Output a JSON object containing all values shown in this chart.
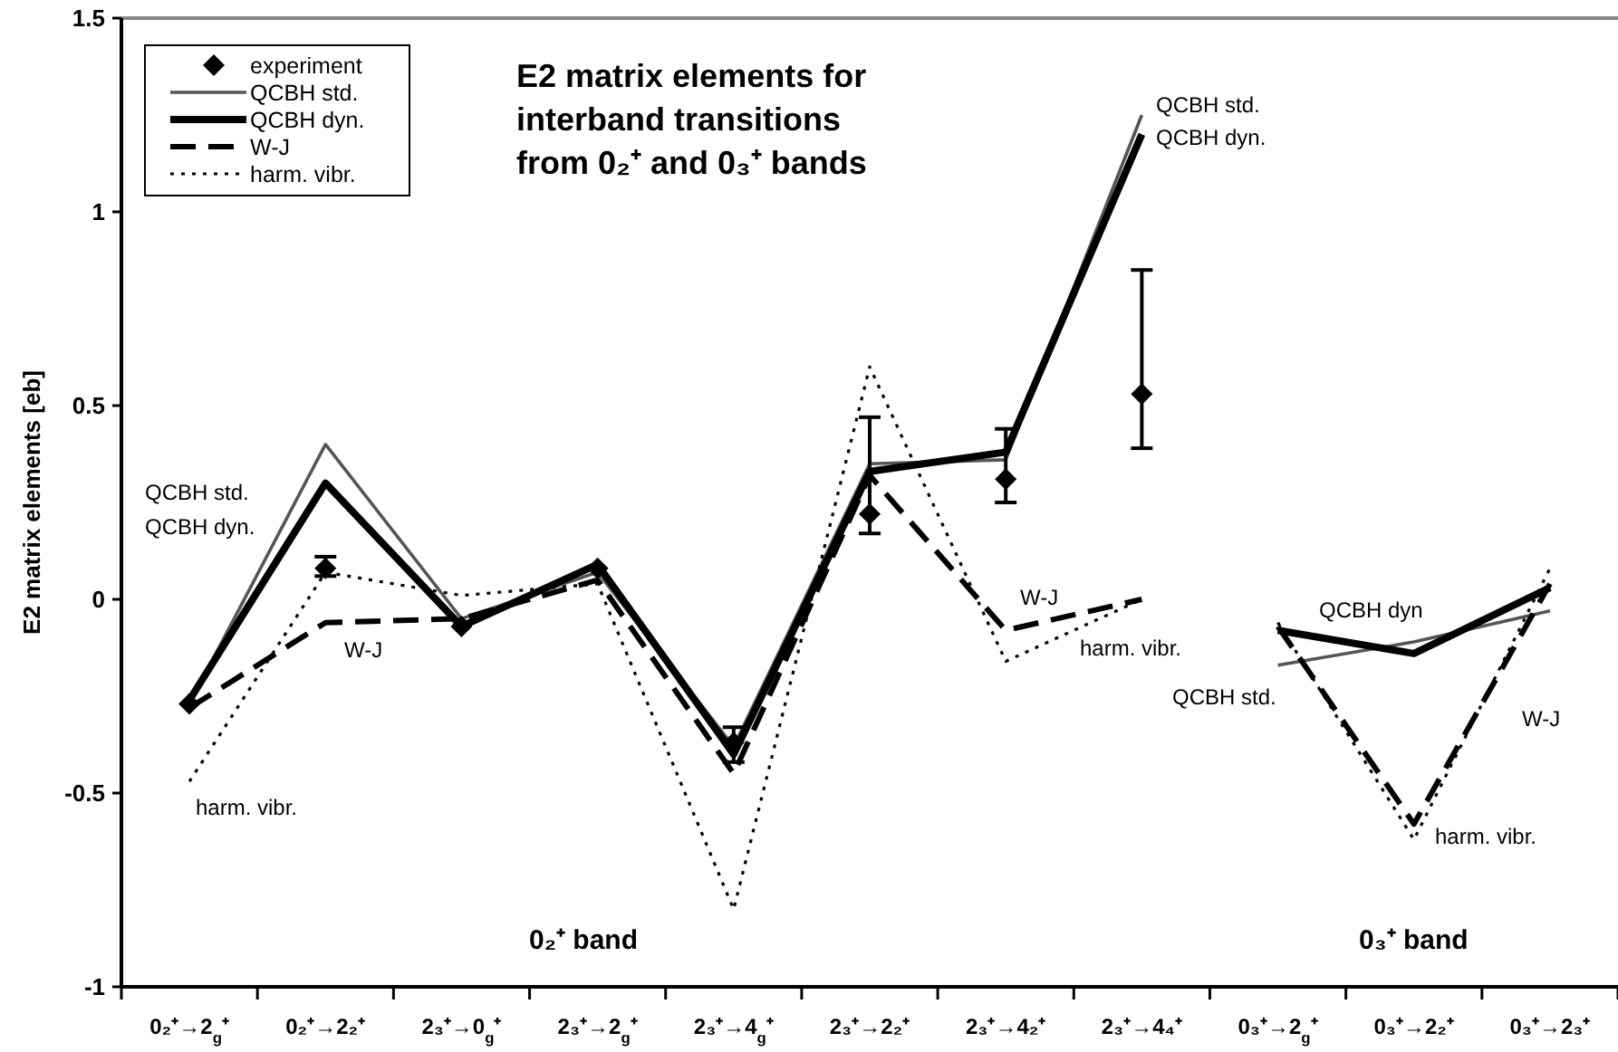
{
  "chart_data": {
    "type": "line",
    "title": "E2 matrix elements for\ninterband transitions\nfrom 0₂⁺ and 0₃⁺ bands",
    "ylabel": "E2 matrix elements [eb]",
    "categories": [
      "0₂⁺→2$_{g}$⁺",
      "0₂⁺→2₂⁺",
      "2₃⁺→0$_{g}$⁺",
      "2₃⁺→2$_{g}$⁺",
      "2₃⁺→4$_{g}$⁺",
      "2₃⁺→2₂⁺",
      "2₃⁺→4₂⁺",
      "2₃⁺→4₄⁺",
      "0₃⁺→2$_{g}$⁺",
      "0₃⁺→2₂⁺",
      "0₃⁺→2₃⁺"
    ],
    "ylim": [
      -1,
      1.5
    ],
    "yticks": [
      -1,
      -0.5,
      0,
      0.5,
      1,
      1.5
    ],
    "grid": false,
    "legend": "top left",
    "series": [
      {
        "name": "experiment",
        "type": "scatter",
        "marker": "diamond",
        "color": "#000000",
        "values": [
          -0.27,
          0.08,
          -0.07,
          0.08,
          -0.37,
          0.22,
          0.31,
          0.53,
          null,
          null,
          null
        ],
        "errors": [
          null,
          [
            0.06,
            0.11
          ],
          null,
          null,
          [
            -0.42,
            -0.33
          ],
          [
            0.17,
            0.47
          ],
          [
            0.25,
            0.44
          ],
          [
            0.39,
            0.85
          ],
          null,
          null,
          null
        ]
      },
      {
        "name": "QCBH std.",
        "color": "#555555",
        "line_style": "solid",
        "values": [
          -0.27,
          0.4,
          -0.05,
          0.07,
          -0.38,
          0.35,
          0.36,
          1.25,
          null,
          null,
          null
        ]
      },
      {
        "name": "QCBH dyn.",
        "color": "#000000",
        "line_style": "solid",
        "values": [
          -0.26,
          0.3,
          -0.07,
          0.09,
          -0.4,
          0.33,
          0.38,
          1.2,
          null,
          null,
          null
        ]
      },
      {
        "name": "W-J",
        "color": "#000000",
        "line_style": "dashed",
        "values": [
          -0.28,
          -0.06,
          -0.05,
          0.05,
          -0.45,
          0.32,
          -0.08,
          0.0,
          null,
          null,
          null
        ]
      },
      {
        "name": "harm. vibr.",
        "color": "#000000",
        "line_style": "dotted",
        "values": [
          -0.47,
          0.07,
          0.01,
          0.04,
          -0.8,
          0.6,
          -0.16,
          0.0,
          null,
          null,
          null
        ]
      },
      {
        "color": "#555555",
        "line_style": "solid",
        "values": [
          null,
          null,
          null,
          null,
          null,
          null,
          null,
          null,
          -0.17,
          -0.11,
          -0.03
        ]
      },
      {
        "color": "#000000",
        "line_style": "solid",
        "values": [
          null,
          null,
          null,
          null,
          null,
          null,
          null,
          null,
          -0.08,
          -0.14,
          0.03
        ]
      },
      {
        "color": "#000000",
        "line_style": "dashed",
        "values": [
          null,
          null,
          null,
          null,
          null,
          null,
          null,
          null,
          -0.07,
          -0.58,
          0.04
        ]
      },
      {
        "color": "#000000",
        "line_style": "dotted",
        "values": [
          null,
          null,
          null,
          null,
          null,
          null,
          null,
          null,
          -0.06,
          -0.62,
          0.08
        ]
      }
    ],
    "annotations": [
      "QCBH std.",
      "QCBH dyn.",
      "W-J",
      "harm. vibr.",
      "QCBH std.",
      "QCBH dyn.",
      "W-J",
      "harm. vibr.",
      "QCBH dyn",
      "QCBH std.",
      "W-J",
      "harm. vibr.",
      "0₂⁺ band",
      "0₃⁺ band"
    ]
  }
}
